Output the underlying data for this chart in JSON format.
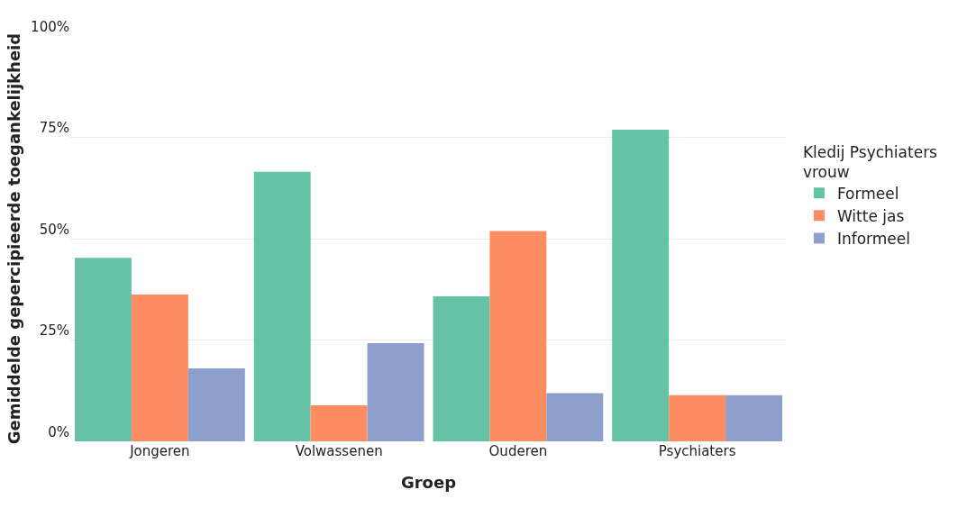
{
  "chart_data": {
    "type": "bar",
    "xlabel": "Groep",
    "ylabel": "Gemiddelde gepercipieerde toegankelijkheid",
    "legend_title": "Kledij Psychiaters vrouw",
    "categories": [
      "Jongeren",
      "Volwassenen",
      "Ouderen",
      "Psychiaters"
    ],
    "series": [
      {
        "name": "Formeel",
        "color": "#66c2a5",
        "values": [
          45.3,
          66.5,
          35.8,
          76.9
        ]
      },
      {
        "name": "Witte jas",
        "color": "#fc8d62",
        "values": [
          36.2,
          8.9,
          51.9,
          11.4
        ]
      },
      {
        "name": "Informeel",
        "color": "#8da0cb",
        "values": [
          18.0,
          24.2,
          11.9,
          11.4
        ]
      }
    ],
    "ylim": [
      0,
      100
    ],
    "yticks": [
      {
        "value": 0,
        "label": "0%"
      },
      {
        "value": 25,
        "label": "25%"
      },
      {
        "value": 50,
        "label": "50%"
      },
      {
        "value": 75,
        "label": "75%"
      },
      {
        "value": 100,
        "label": "100%"
      }
    ],
    "grid": "y",
    "legend": "right"
  }
}
